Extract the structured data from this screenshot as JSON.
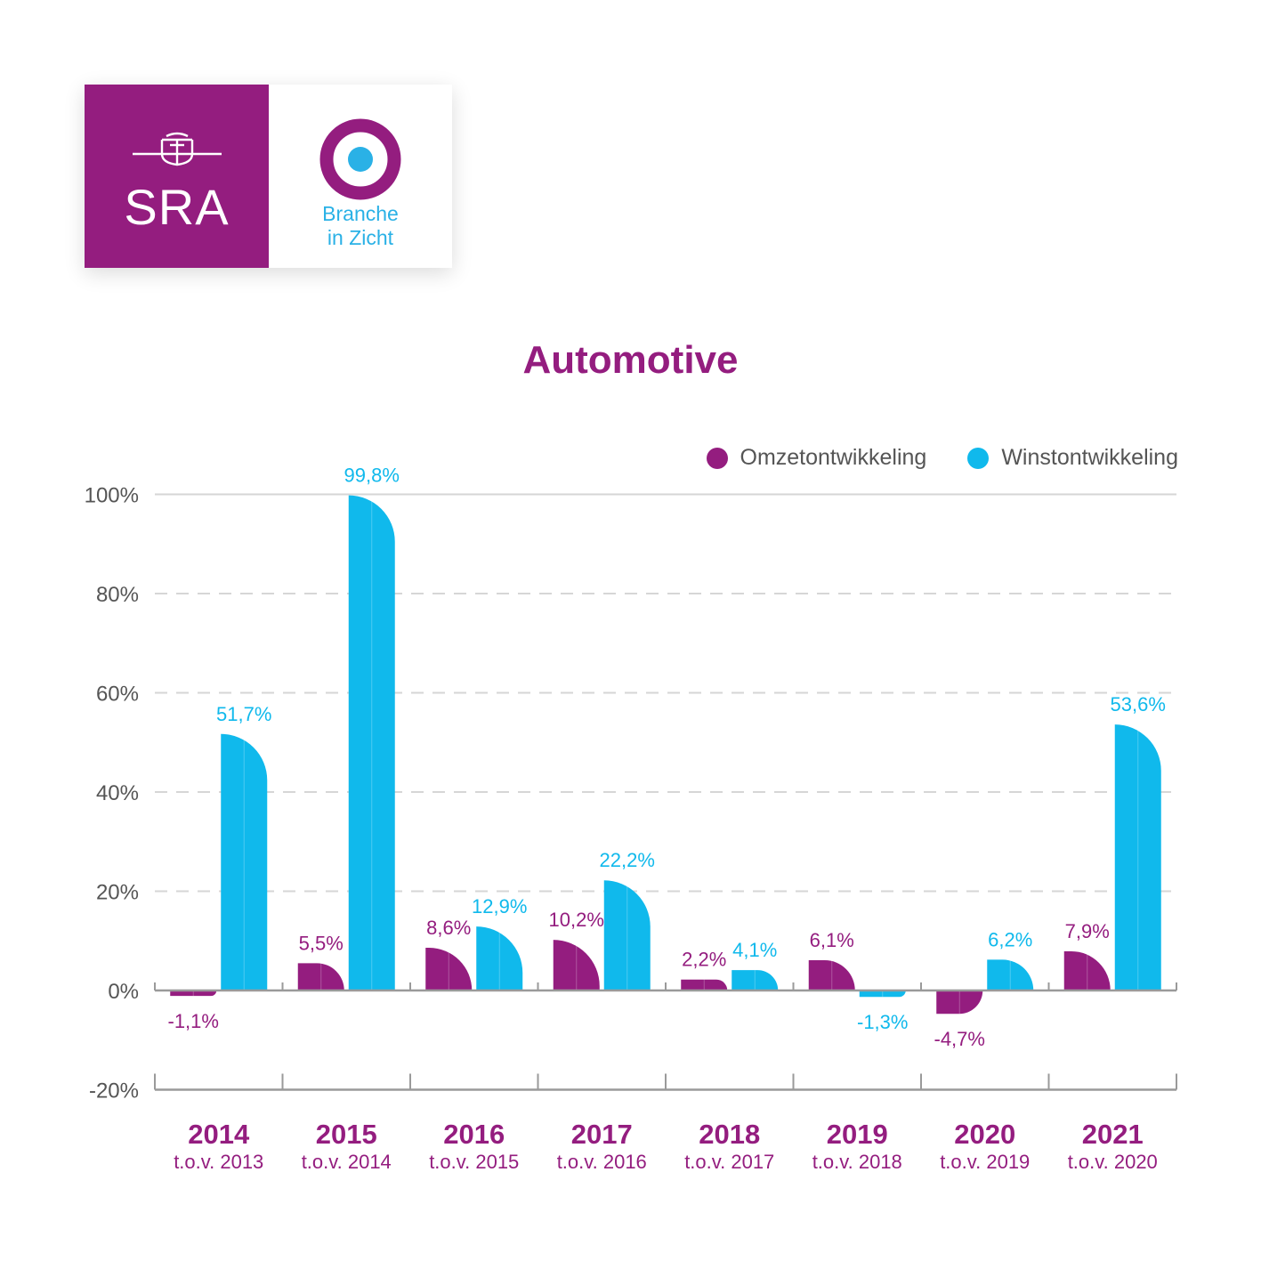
{
  "logo": {
    "left_text": "SRA",
    "right_text_line1": "Branche",
    "right_text_line2": "in Zicht",
    "colors": {
      "purple": "#941d7f",
      "blue": "#2ab1e6"
    }
  },
  "chart_data": {
    "type": "bar",
    "title": "Automotive",
    "categories": [
      "2014",
      "2015",
      "2016",
      "2017",
      "2018",
      "2019",
      "2020",
      "2021"
    ],
    "category_sublabels": [
      "t.o.v. 2013",
      "t.o.v. 2014",
      "t.o.v. 2015",
      "t.o.v. 2016",
      "t.o.v. 2017",
      "t.o.v. 2018",
      "t.o.v. 2019",
      "t.o.v. 2020"
    ],
    "series": [
      {
        "name": "Omzetontwikkeling",
        "color": "#941d7f",
        "values": [
          -1.1,
          5.5,
          8.6,
          10.2,
          2.2,
          6.1,
          -4.7,
          7.9
        ],
        "labels": [
          "-1,1%",
          "5,5%",
          "8,6%",
          "10,2%",
          "2,2%",
          "6,1%",
          "-4,7%",
          "7,9%"
        ]
      },
      {
        "name": "Winstontwikkeling",
        "color": "#10b9ec",
        "values": [
          51.7,
          99.8,
          12.9,
          22.2,
          4.1,
          -1.3,
          6.2,
          53.6
        ],
        "labels": [
          "51,7%",
          "99,8%",
          "12,9%",
          "22,2%",
          "4,1%",
          "-1,3%",
          "6,2%",
          "53,6%"
        ]
      }
    ],
    "yticks": [
      -20,
      0,
      20,
      40,
      60,
      80,
      100
    ],
    "ytick_labels": [
      "-20%",
      "0%",
      "20%",
      "40%",
      "60%",
      "80%",
      "100%"
    ],
    "ylim": [
      -20,
      100
    ],
    "xlabel": "",
    "ylabel": "",
    "grid": true,
    "legend_position": "top-right"
  }
}
